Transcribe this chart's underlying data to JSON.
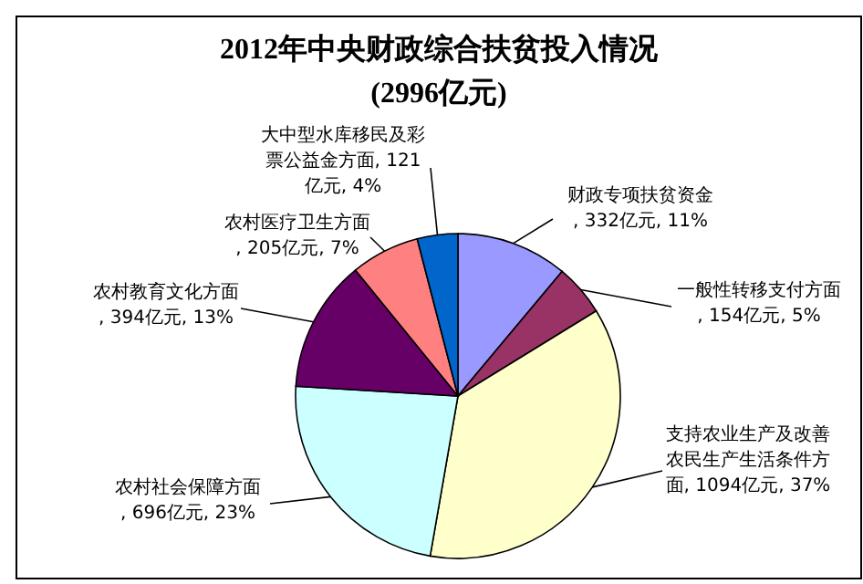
{
  "chart_data": {
    "type": "pie",
    "title": "2012年中央财政综合扶贫投入情况",
    "subtitle": "(2996亿元)",
    "categories": [
      "财政专项扶贫资金",
      "一般性转移支付方面",
      "支持农业生产及改善农民生产生活条件方面",
      "农村社会保障方面",
      "农村教育文化方面",
      "农村医疗卫生方面",
      "大中型水库移民及彩票公益金方面"
    ],
    "values": [
      332,
      154,
      1094,
      696,
      394,
      205,
      121
    ],
    "value_labels": [
      ", 332亿元, 11%",
      ", 154亿元, 5%",
      ", 1094亿元, 37%",
      ", 696亿元, 23%",
      ", 394亿元, 13%",
      ", 205亿元, 7%",
      ", 121亿元, 4%"
    ],
    "colors": [
      "#9999ff",
      "#993366",
      "#ffffcc",
      "#ccffff",
      "#660066",
      "#ff8080",
      "#0066cc"
    ]
  }
}
